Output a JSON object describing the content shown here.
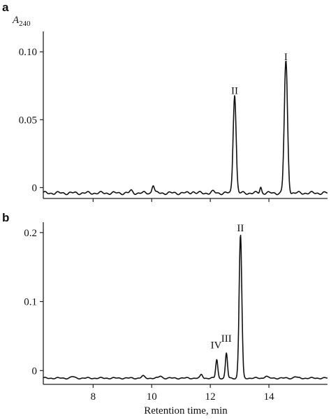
{
  "chart_data": [
    {
      "type": "line",
      "panel_label": "a",
      "ylabel_main": "A",
      "ylabel_sub": "240",
      "xlim": [
        6.3,
        16.0
      ],
      "ylim": [
        -0.008,
        0.115
      ],
      "yticks": [
        0,
        0.05,
        0.1
      ],
      "ytick_labels": [
        "0",
        "0.05",
        "0.10"
      ],
      "xticks": [
        8,
        10,
        12,
        14
      ],
      "baseline": -0.004,
      "annotations": [
        {
          "text": "II",
          "x": 12.83,
          "y": 0.069
        },
        {
          "text": "I",
          "x": 14.58,
          "y": 0.094
        }
      ],
      "peaks": [
        {
          "x": 14.58,
          "height": 0.097,
          "width": 0.055
        },
        {
          "x": 12.83,
          "height": 0.073,
          "width": 0.05
        },
        {
          "x": 10.05,
          "height": 0.006,
          "width": 0.04
        },
        {
          "x": 13.72,
          "height": 0.0045,
          "width": 0.03
        },
        {
          "x": 9.3,
          "height": 0.0015,
          "width": 0.05
        },
        {
          "x": 11.4,
          "height": 0.0012,
          "width": 0.05
        },
        {
          "x": 12.1,
          "height": 0.001,
          "width": 0.05
        }
      ]
    },
    {
      "type": "line",
      "panel_label": "b",
      "xlim": [
        6.3,
        16.0
      ],
      "ylim": [
        -0.02,
        0.215
      ],
      "yticks": [
        0,
        0.1,
        0.2
      ],
      "ytick_labels": [
        "0",
        "0.1",
        "0.2"
      ],
      "xticks": [
        8,
        10,
        12,
        14
      ],
      "xtick_labels": [
        "8",
        "10",
        "12",
        "14"
      ],
      "xlabel": "Retention time, min",
      "baseline": -0.011,
      "annotations": [
        {
          "text": "II",
          "x": 13.03,
          "y": 0.202
        },
        {
          "text": "III",
          "x": 12.55,
          "y": 0.042
        },
        {
          "text": "IV",
          "x": 12.2,
          "y": 0.032
        }
      ],
      "peaks": [
        {
          "x": 13.03,
          "height": 0.208,
          "width": 0.045
        },
        {
          "x": 12.55,
          "height": 0.036,
          "width": 0.035
        },
        {
          "x": 12.22,
          "height": 0.027,
          "width": 0.035
        },
        {
          "x": 11.7,
          "height": 0.005,
          "width": 0.04
        },
        {
          "x": 9.7,
          "height": 0.003,
          "width": 0.05
        },
        {
          "x": 10.3,
          "height": 0.003,
          "width": 0.05
        },
        {
          "x": 13.9,
          "height": 0.003,
          "width": 0.05
        },
        {
          "x": 7.3,
          "height": 0.002,
          "width": 0.06
        },
        {
          "x": 14.9,
          "height": 0.002,
          "width": 0.05
        }
      ]
    }
  ]
}
